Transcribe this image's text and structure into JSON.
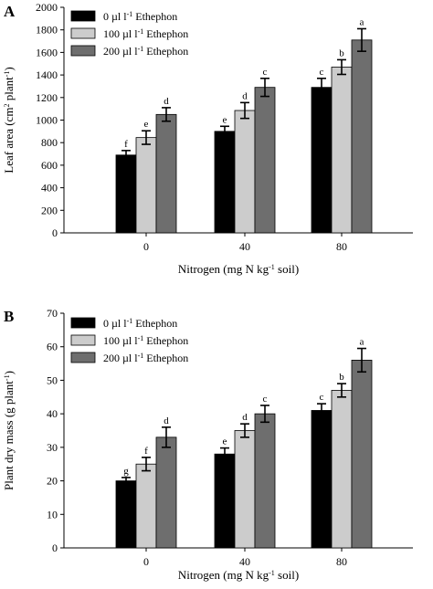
{
  "chart_data": [
    {
      "type": "bar",
      "panel": "A",
      "categories": [
        "0",
        "40",
        "80"
      ],
      "series": [
        {
          "name": "0 µl l⁻¹ Ethephon",
          "color": "#000000",
          "values": [
            690,
            900,
            1290
          ],
          "errors": [
            40,
            45,
            80
          ],
          "letters": [
            "f",
            "e",
            "c"
          ]
        },
        {
          "name": "100 µl l⁻¹ Ethephon",
          "color": "#cccccc",
          "values": [
            845,
            1085,
            1470
          ],
          "errors": [
            60,
            70,
            65
          ],
          "letters": [
            "e",
            "d",
            "b"
          ]
        },
        {
          "name": "200 µl l⁻¹ Ethephon",
          "color": "#6e6e6e",
          "values": [
            1050,
            1290,
            1710
          ],
          "errors": [
            60,
            80,
            100
          ],
          "letters": [
            "d",
            "c",
            "a"
          ]
        }
      ],
      "ylabel": "Leaf area (cm² plant⁻¹)",
      "xlabel": "Nitrogen (mg N kg⁻¹ soil)",
      "ylim": [
        0,
        2000
      ],
      "yticks": [
        "0",
        "200",
        "400",
        "600",
        "800",
        "1000",
        "1200",
        "1400",
        "1600",
        "1800",
        "2000"
      ],
      "legend": "top-left",
      "grid": false
    },
    {
      "type": "bar",
      "panel": "B",
      "categories": [
        "0",
        "40",
        "80"
      ],
      "series": [
        {
          "name": "0 µl l⁻¹ Ethephon",
          "color": "#000000",
          "values": [
            20,
            28,
            41
          ],
          "errors": [
            1,
            1.8,
            2
          ],
          "letters": [
            "g",
            "e",
            "c"
          ]
        },
        {
          "name": "100 µl l⁻¹ Ethephon",
          "color": "#cccccc",
          "values": [
            25,
            35,
            47
          ],
          "errors": [
            2,
            2,
            2
          ],
          "letters": [
            "f",
            "d",
            "b"
          ]
        },
        {
          "name": "200 µl l⁻¹ Ethephon",
          "color": "#6e6e6e",
          "values": [
            33,
            40,
            56
          ],
          "errors": [
            3,
            2.5,
            3.5
          ],
          "letters": [
            "d",
            "c",
            "a"
          ]
        }
      ],
      "ylabel": "Plant dry mass (g plant⁻¹)",
      "xlabel": "Nitrogen (mg N kg⁻¹ soil)",
      "ylim": [
        0,
        70
      ],
      "yticks": [
        "0",
        "10",
        "20",
        "30",
        "40",
        "50",
        "60",
        "70"
      ],
      "legend": "top-left",
      "grid": false
    }
  ]
}
